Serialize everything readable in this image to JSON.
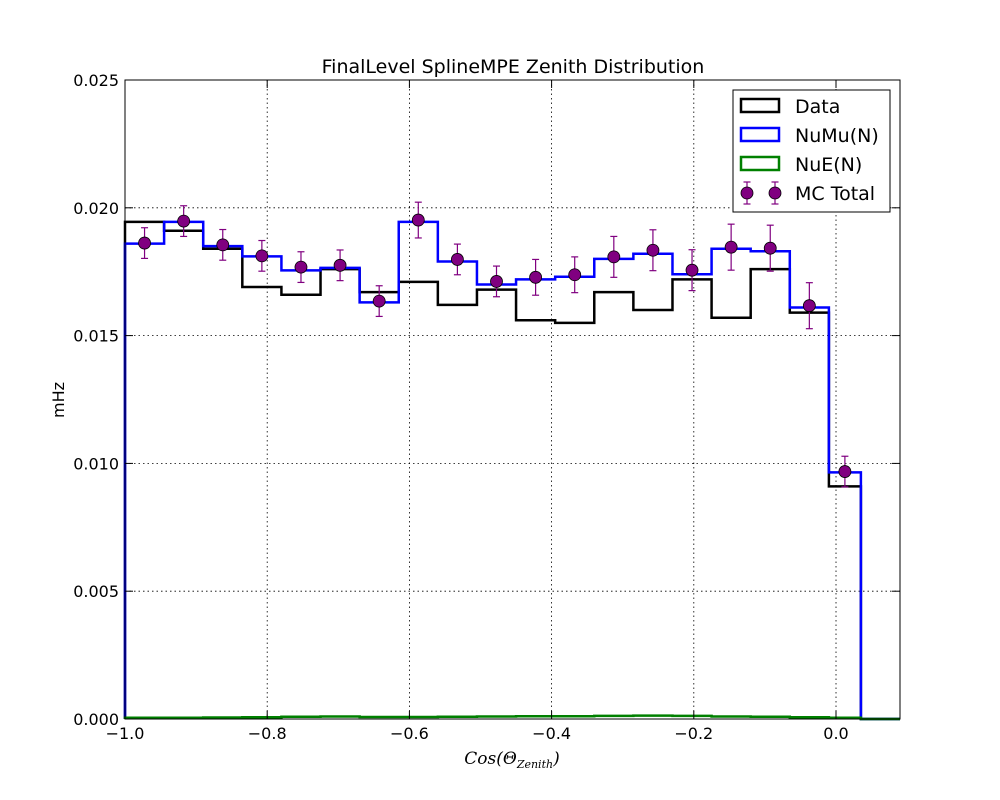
{
  "chart_data": {
    "type": "line",
    "title": "FinalLevel SplineMPE Zenith Distribution",
    "xlabel": {
      "base": "Cos(Θ",
      "sub": "Zenith",
      "close": ")"
    },
    "ylabel": "mHz",
    "xlim": [
      -1.0,
      0.09
    ],
    "ylim": [
      0.0,
      0.025
    ],
    "xticks": [
      -1.0,
      -0.8,
      -0.6,
      -0.4,
      -0.2,
      0.0
    ],
    "xtick_labels": [
      "−1.0",
      "−0.8",
      "−0.6",
      "−0.4",
      "−0.2",
      "0.0"
    ],
    "yticks": [
      0.0,
      0.005,
      0.01,
      0.015,
      0.02,
      0.025
    ],
    "ytick_labels": [
      "0.000",
      "0.005",
      "0.010",
      "0.015",
      "0.020",
      "0.025"
    ],
    "grid": true,
    "legend_position": "top-right",
    "bin_edges": [
      -1.0,
      -0.945,
      -0.89,
      -0.835,
      -0.78,
      -0.725,
      -0.67,
      -0.615,
      -0.56,
      -0.505,
      -0.45,
      -0.395,
      -0.34,
      -0.285,
      -0.23,
      -0.175,
      -0.12,
      -0.065,
      -0.01,
      0.035,
      0.09
    ],
    "series": [
      {
        "name": "Data",
        "style": "step",
        "color": "#000000",
        "values": [
          0.01945,
          0.0191,
          0.0184,
          0.0169,
          0.0166,
          0.0176,
          0.0167,
          0.0171,
          0.0162,
          0.0168,
          0.0156,
          0.0155,
          0.0167,
          0.016,
          0.0172,
          0.0157,
          0.0176,
          0.0159,
          0.0091,
          0.0
        ]
      },
      {
        "name": "NuMu(N)",
        "style": "step",
        "color": "#0000ff",
        "values": [
          0.0186,
          0.01945,
          0.0185,
          0.0181,
          0.01755,
          0.01765,
          0.0163,
          0.01945,
          0.0179,
          0.017,
          0.0172,
          0.0173,
          0.018,
          0.0182,
          0.0174,
          0.0184,
          0.0183,
          0.0161,
          0.00965,
          0.0
        ]
      },
      {
        "name": "NuE(N)",
        "style": "step",
        "color": "#008000",
        "values": [
          5e-05,
          5e-05,
          6e-05,
          7e-05,
          9e-05,
          0.0001,
          8e-05,
          8e-05,
          9e-05,
          0.0001,
          0.00011,
          0.00011,
          0.00012,
          0.00013,
          0.00012,
          0.0001,
          9e-05,
          7e-05,
          5e-05,
          0.0
        ]
      },
      {
        "name": "MC Total",
        "style": "errorbar",
        "color": "#800080",
        "x": [
          -0.9725,
          -0.9175,
          -0.8625,
          -0.8075,
          -0.7525,
          -0.6975,
          -0.6425,
          -0.5875,
          -0.5325,
          -0.4775,
          -0.4225,
          -0.3675,
          -0.3125,
          -0.2575,
          -0.2025,
          -0.1475,
          -0.0925,
          -0.0375,
          0.0125
        ],
        "y": [
          0.01862,
          0.01948,
          0.01855,
          0.01812,
          0.01768,
          0.01775,
          0.01635,
          0.01952,
          0.01798,
          0.01712,
          0.01728,
          0.01738,
          0.01808,
          0.01834,
          0.01756,
          0.01846,
          0.01842,
          0.01617,
          0.00968
        ],
        "yerr": [
          0.0006,
          0.0006,
          0.0006,
          0.0006,
          0.0006,
          0.0006,
          0.0006,
          0.0007,
          0.0006,
          0.0006,
          0.0007,
          0.0007,
          0.0008,
          0.0008,
          0.0008,
          0.0009,
          0.0009,
          0.0009,
          0.0006
        ]
      }
    ]
  }
}
